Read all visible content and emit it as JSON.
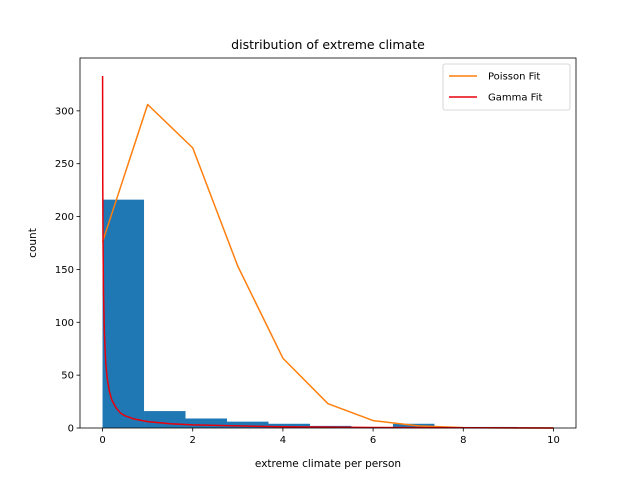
{
  "chart_data": {
    "type": "histogram",
    "title": "distribution of extreme climate",
    "xlabel": "extreme climate per person",
    "ylabel": "count",
    "xlim": [
      -0.5,
      10.5
    ],
    "ylim": [
      0,
      350
    ],
    "xticks": [
      0,
      2,
      4,
      6,
      8,
      10
    ],
    "yticks": [
      0,
      50,
      100,
      150,
      200,
      250,
      300
    ],
    "grid": false,
    "legend_position": "top-right",
    "histogram": {
      "color": "#1f77b4",
      "bin_edges": [
        0,
        0.92,
        1.84,
        2.76,
        3.68,
        4.6,
        5.52,
        6.44,
        7.36,
        8.28,
        9.2
      ],
      "counts": [
        216,
        16,
        9,
        6,
        4,
        2,
        0,
        4,
        1,
        1
      ]
    },
    "series": [
      {
        "name": "Poisson Fit",
        "color": "#ff7f0e",
        "x": [
          0,
          1,
          2,
          3,
          4,
          5,
          6,
          7,
          8,
          9,
          10
        ],
        "y": [
          176,
          306,
          265,
          153,
          66,
          23,
          7,
          2,
          0.4,
          0.1,
          0
        ]
      },
      {
        "name": "Gamma Fit",
        "color": "#e8000b",
        "x": [
          0.001,
          0.005,
          0.01,
          0.02,
          0.04,
          0.07,
          0.1,
          0.15,
          0.2,
          0.3,
          0.4,
          0.5,
          0.7,
          1.0,
          1.5,
          2.0,
          3.0,
          4.0,
          5.0,
          6.0,
          7.0,
          8.0,
          9.0,
          10.0
        ],
        "y": [
          333,
          230,
          180,
          130,
          90,
          62,
          48,
          35,
          27,
          19,
          14,
          11.5,
          8.5,
          6,
          4,
          3,
          2,
          1.2,
          0.8,
          0.5,
          0.3,
          0.2,
          0.1,
          0.05
        ]
      }
    ]
  }
}
